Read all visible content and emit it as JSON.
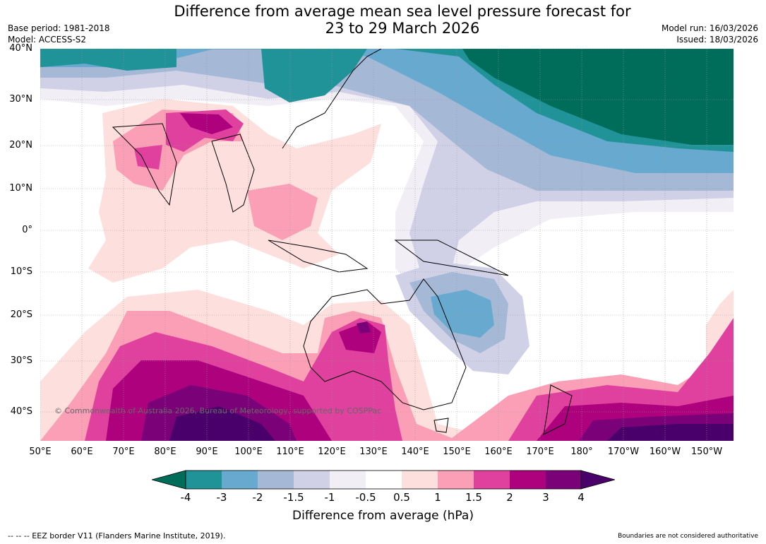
{
  "title_line1": "Difference from average mean sea level pressure forecast for",
  "title_line2": "23 to 29 March 2026",
  "base_period": "Base period: 1981-2018",
  "model": "Model: ACCESS-S2",
  "model_run": "Model run: 16/03/2026",
  "issued": "Issued: 18/03/2026",
  "latitudes": [
    "40°N",
    "30°N",
    "20°N",
    "10°N",
    "0°",
    "10°S",
    "20°S",
    "30°S",
    "40°S"
  ],
  "longitudes": [
    "50°E",
    "60°E",
    "70°E",
    "80°E",
    "90°E",
    "100°E",
    "110°E",
    "120°E",
    "130°E",
    "140°E",
    "150°E",
    "160°E",
    "170°E",
    "180°",
    "170°W",
    "160°W",
    "150°W"
  ],
  "copyright": "© Commonwealth of Australia 2026, Bureau of Meteorology, supported by COSPPac",
  "colorbar": {
    "ticks": [
      "-4",
      "-3",
      "-2",
      "-1.5",
      "-1",
      "-0.5",
      "0.5",
      "1",
      "1.5",
      "2",
      "3",
      "4"
    ],
    "colors": [
      "#1f9397",
      "#67a9cf",
      "#a5b9d7",
      "#d0d1e6",
      "#f1eef6",
      "#ffffff",
      "#fde0dd",
      "#fa9fb5",
      "#e0409e",
      "#ae017e",
      "#7a0177"
    ],
    "under_color": "#006d5b",
    "over_color": "#49006a",
    "label": "Difference from average (hPa)"
  },
  "footer_left": "--  --  -- EEZ border V11 (Flanders Marine Institute, 2019).",
  "footer_right": "Boundaries are not considered authoritative"
}
